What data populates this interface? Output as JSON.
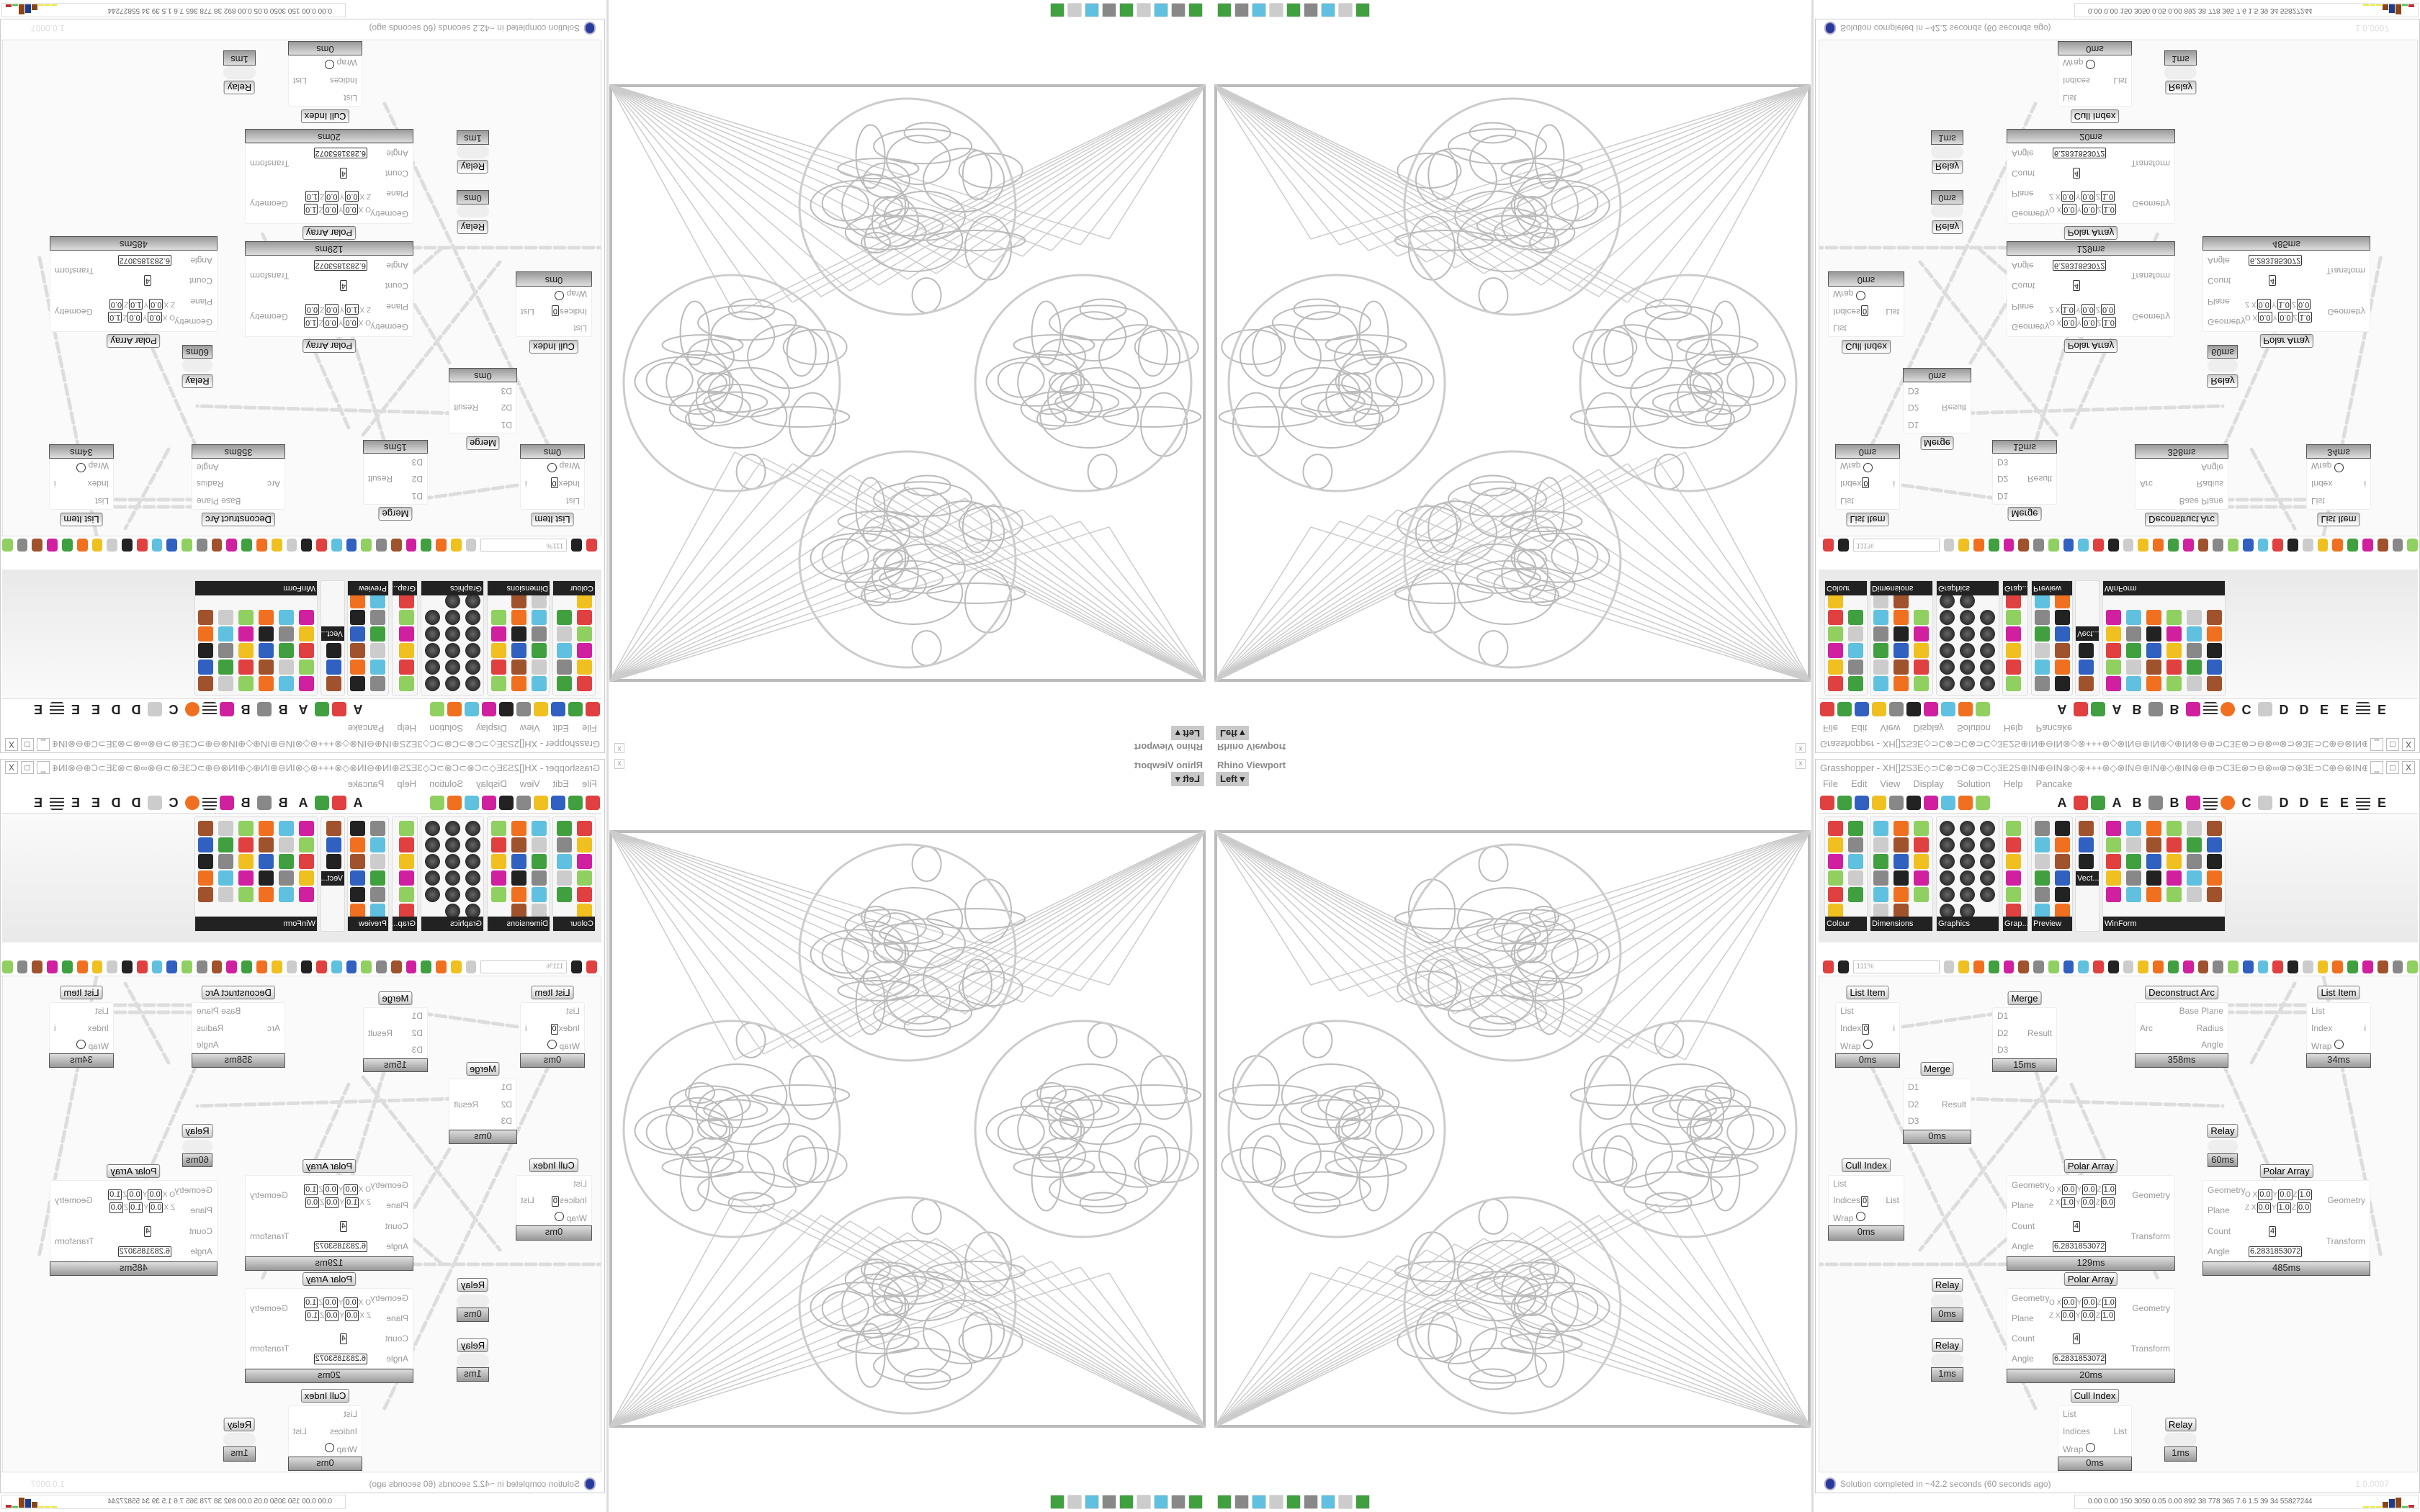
{
  "viewport": {
    "title": "Rhino Viewport",
    "view_label": "Left",
    "close": "x"
  },
  "grasshopper": {
    "title": "Grasshopper - XH[]2S3E◇⊃C⊗⊃C⊗⊃C◇3E2S⊕IN⊕⊖IN⊗◇⊗+++⊗◇⊗IN⊖⊕IN⊕◇⊕IN⊗⊖⊕⊃C3E⊗⊃⊖⊗∞⊗⊃⊗3E⊃C⊕⊖⊗IN⊕◇⊕3E⊗3E⊞+2S+⊞3E⊗3E⊕◇⊕⊗⊃3E⊞⊕⊃C...",
    "window_buttons": [
      "_",
      "□",
      "X"
    ],
    "menu": [
      "File",
      "Edit",
      "View",
      "Display",
      "Solution",
      "Help",
      "Pancake"
    ],
    "tab_row": [
      "A",
      "A",
      "B",
      "B",
      "C",
      "D",
      "D",
      "E",
      "E",
      "E"
    ],
    "palette_groups": [
      "Colour",
      "Dimensions",
      "Graphics",
      "Grap...",
      "Preview",
      "Vect...",
      "WinForm"
    ],
    "zoom_level": "111%",
    "nodes": [
      {
        "type": "List Item",
        "inputs": [
          "List",
          "Index",
          "Wrap"
        ],
        "outputs": [
          "i"
        ],
        "index_value": "0",
        "time": "0ms"
      },
      {
        "type": "Merge",
        "inputs": [
          "D1",
          "D2",
          "D3"
        ],
        "outputs": [
          "Result"
        ],
        "time": "15ms"
      },
      {
        "type": "Deconstruct Arc",
        "inputs": [
          "Arc"
        ],
        "outputs": [
          "Base Plane",
          "Radius",
          "Angle"
        ],
        "time": "358ms"
      },
      {
        "type": "List Item",
        "inputs": [
          "List",
          "Index",
          "Wrap"
        ],
        "outputs": [
          "i"
        ],
        "time": "34ms"
      },
      {
        "type": "Merge",
        "inputs": [
          "D1",
          "D2",
          "D3"
        ],
        "outputs": [
          "Result"
        ],
        "time": "0ms"
      },
      {
        "type": "Relay",
        "time": "60ms"
      },
      {
        "type": "Cull Index",
        "inputs": [
          "List",
          "Indices",
          "Wrap"
        ],
        "outputs": [
          "List"
        ],
        "index_value": "0",
        "time": "0ms"
      },
      {
        "type": "Polar Array",
        "inputs": [
          "Geometry",
          "Plane",
          "Count",
          "Angle"
        ],
        "outputs": [
          "Geometry",
          "Transform"
        ],
        "plane_o": [
          "0.0",
          "0.0",
          "1.0"
        ],
        "plane_z": [
          "1.0",
          "0.0",
          "0.0"
        ],
        "count": "4",
        "angle": "6.2831853072",
        "time": "129ms"
      },
      {
        "type": "Polar Array",
        "inputs": [
          "Geometry",
          "Plane",
          "Count",
          "Angle"
        ],
        "outputs": [
          "Geometry",
          "Transform"
        ],
        "plane_o": [
          "0.0",
          "0.0",
          "1.0"
        ],
        "plane_z": [
          "0.0",
          "1.0",
          "0.0"
        ],
        "count": "4",
        "angle": "6.2831853072",
        "time": "485ms"
      },
      {
        "type": "Polar Array",
        "inputs": [
          "Geometry",
          "Plane",
          "Count",
          "Angle"
        ],
        "outputs": [
          "Geometry",
          "Transform"
        ],
        "plane_o": [
          "0.0",
          "0.0",
          "1.0"
        ],
        "plane_z": [
          "0.0",
          "0.0",
          "1.0"
        ],
        "count": "4",
        "angle": "6.2831853072",
        "time": "20ms"
      },
      {
        "type": "Relay",
        "time": "0ms"
      },
      {
        "type": "Relay",
        "time": "1ms"
      },
      {
        "type": "Cull Index",
        "inputs": [
          "List",
          "Indices",
          "Wrap"
        ],
        "outputs": [
          "List"
        ],
        "time": "0ms"
      },
      {
        "type": "Relay",
        "time": "1ms"
      }
    ],
    "status": "Solution completed in ~42.2 seconds (60 seconds ago)",
    "version": "1.0.0007"
  },
  "perf_meter": "0.00 0.00 150 3050 0.05 0.00 892 38 778 365 7.6 1.5 39 34 55827244",
  "taskbar_icons": [
    "terminal-icon",
    "firefox-icon",
    "floppy-64-icon",
    "scroll-icon",
    "notepad-icon",
    "globe-icon",
    "globe-icon",
    "wolf-icon",
    "red-app-icon"
  ],
  "colors": {
    "accent_orange": "#f07020",
    "status_blue": "#2a3a9a",
    "palette_label_bg": "#222222"
  }
}
